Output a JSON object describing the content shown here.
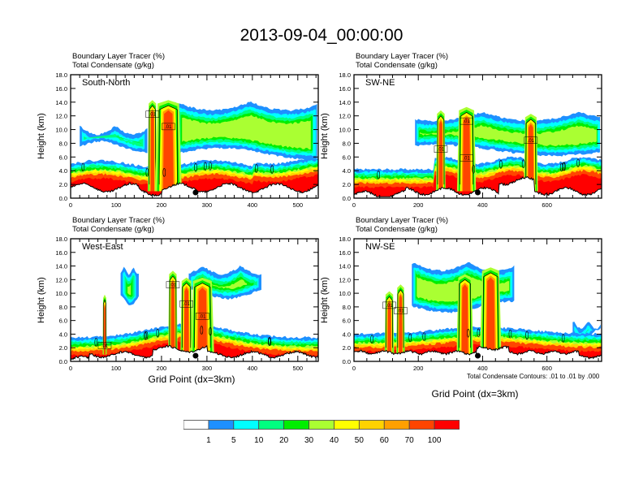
{
  "title": "2013-09-04_00:00:00",
  "colors": {
    "levels": [
      "#ffffff",
      "#1e90ff",
      "#00ffff",
      "#00ff80",
      "#00ee00",
      "#aaff32",
      "#ffff00",
      "#ffd200",
      "#ffa000",
      "#ff4500",
      "#ff0000"
    ],
    "contour": "#000000",
    "marker": "#000000"
  },
  "chart_data": [
    {
      "type": "heatmap",
      "panel": "top-left",
      "label": "South-North",
      "title_lines": [
        "Boundary Layer Tracer   (%)",
        "Total Condensate   (g/kg)"
      ],
      "ylabel": "Height (km)",
      "xlabel": "",
      "xlim": [
        0,
        545
      ],
      "ylim": [
        0,
        18
      ],
      "xticks": [
        0,
        100,
        200,
        300,
        400,
        500
      ],
      "yticks": [
        "0.0",
        "2.0",
        "4.0",
        "6.0",
        "8.0",
        "10.0",
        "12.0",
        "14.0",
        "16.0",
        "18.0"
      ],
      "marker_x": 275,
      "contour_labels": [
        ".01",
        ".01"
      ]
    },
    {
      "type": "heatmap",
      "panel": "top-right",
      "label": "SW-NE",
      "title_lines": [
        "Boundary Layer Tracer   (%)",
        "Total Condensate   (g/kg)"
      ],
      "ylabel": "Height (km)",
      "xlabel": "",
      "xlim": [
        0,
        770
      ],
      "ylim": [
        0,
        18
      ],
      "xticks": [
        0,
        200,
        400,
        600
      ],
      "yticks": [
        "0.0",
        "2.0",
        "4.0",
        "6.0",
        "8.0",
        "10.0",
        "12.0",
        "14.0",
        "16.0",
        "18.0"
      ],
      "marker_x": 385,
      "contour_labels": [
        ".01",
        ".01",
        ".01",
        ".01"
      ]
    },
    {
      "type": "heatmap",
      "panel": "bottom-left",
      "label": "West-East",
      "title_lines": [
        "Boundary Layer Tracer   (%)",
        "Total Condensate   (g/kg)"
      ],
      "ylabel": "Height (km)",
      "xlabel": "Grid Point (dx=3km)",
      "xlim": [
        0,
        545
      ],
      "ylim": [
        0,
        18
      ],
      "xticks": [
        0,
        100,
        200,
        300,
        400,
        500
      ],
      "yticks": [
        "0.0",
        "2.0",
        "4.0",
        "6.0",
        "8.0",
        "10.0",
        "12.0",
        "14.0",
        "16.0",
        "18.0"
      ],
      "marker_x": 275,
      "contour_labels": [
        ".01",
        ".01",
        ".01",
        ".01"
      ]
    },
    {
      "type": "heatmap",
      "panel": "bottom-right",
      "label": "NW-SE",
      "title_lines": [
        "Boundary Layer Tracer   (%)",
        "Total Condensate   (g/kg)"
      ],
      "ylabel": "Height (km)",
      "xlabel": "Grid Point (dx=3km)",
      "xlim": [
        0,
        770
      ],
      "ylim": [
        0,
        18
      ],
      "xticks": [
        0,
        200,
        400,
        600
      ],
      "yticks": [
        "0.0",
        "2.0",
        "4.0",
        "6.0",
        "8.0",
        "10.0",
        "12.0",
        "14.0",
        "16.0",
        "18.0"
      ],
      "marker_x": 385,
      "contour_labels": [
        ".01",
        ".01"
      ],
      "note": "Total Condensate Contours: .01 to .01 by .000"
    }
  ],
  "colorbar": {
    "labels": [
      "1",
      "5",
      "10",
      "20",
      "30",
      "40",
      "50",
      "60",
      "70",
      "100"
    ],
    "colors": [
      "#ffffff",
      "#1e90ff",
      "#00ffff",
      "#00ff80",
      "#00ee00",
      "#aaff32",
      "#ffff00",
      "#ffd200",
      "#ffa000",
      "#ff4500",
      "#ff0000"
    ]
  }
}
